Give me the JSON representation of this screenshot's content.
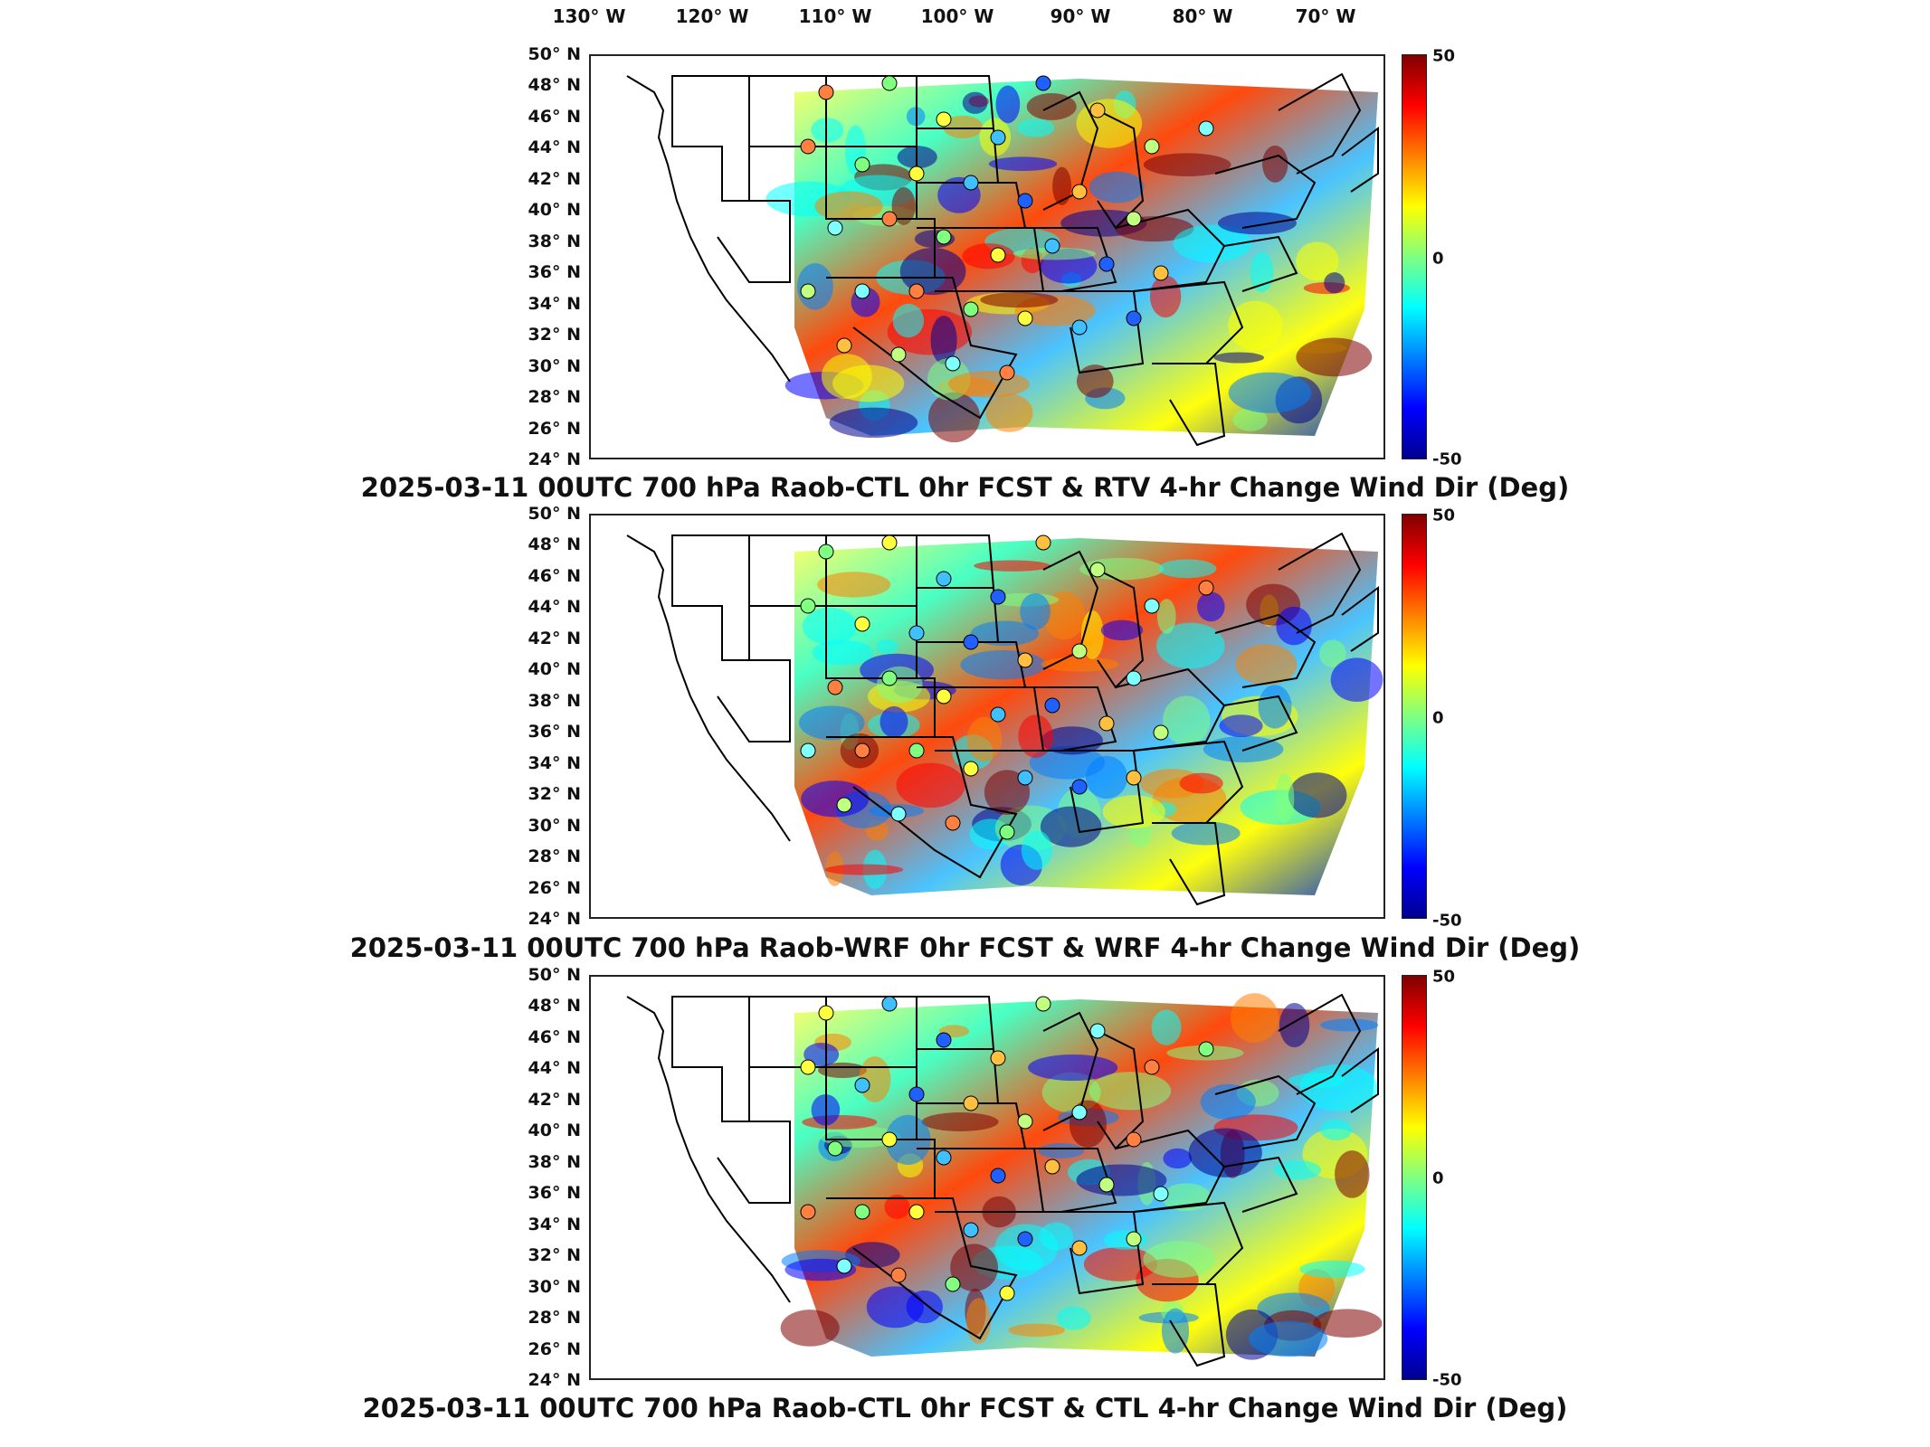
{
  "longitude_labels": [
    "130° W",
    "120° W",
    "110° W",
    "100° W",
    "90° W",
    "80° W",
    "70° W"
  ],
  "latitude_labels": [
    "50° N",
    "48° N",
    "46° N",
    "44° N",
    "42° N",
    "40° N",
    "38° N",
    "36° N",
    "34° N",
    "32° N",
    "30° N",
    "28° N",
    "26° N",
    "24° N"
  ],
  "colorbar": {
    "max_label": "50",
    "mid_label": "0",
    "min_label": "-50",
    "colormap": [
      "#00008f",
      "#0000ff",
      "#0080ff",
      "#00ffff",
      "#80ff80",
      "#ffff00",
      "#ff8000",
      "#ff0000",
      "#800000"
    ]
  },
  "panels": [
    {
      "title": "2025-03-11 00UTC 700 hPa Raob-CTL 0hr FCST & RTV 4-hr Change Wind Dir (Deg)"
    },
    {
      "title": "2025-03-11 00UTC 700 hPa Raob-WRF 0hr FCST & WRF 4-hr Change Wind Dir (Deg)"
    },
    {
      "title": "2025-03-11 00UTC 700 hPa Raob-CTL 0hr FCST & CTL 4-hr Change Wind Dir (Deg)"
    }
  ]
}
